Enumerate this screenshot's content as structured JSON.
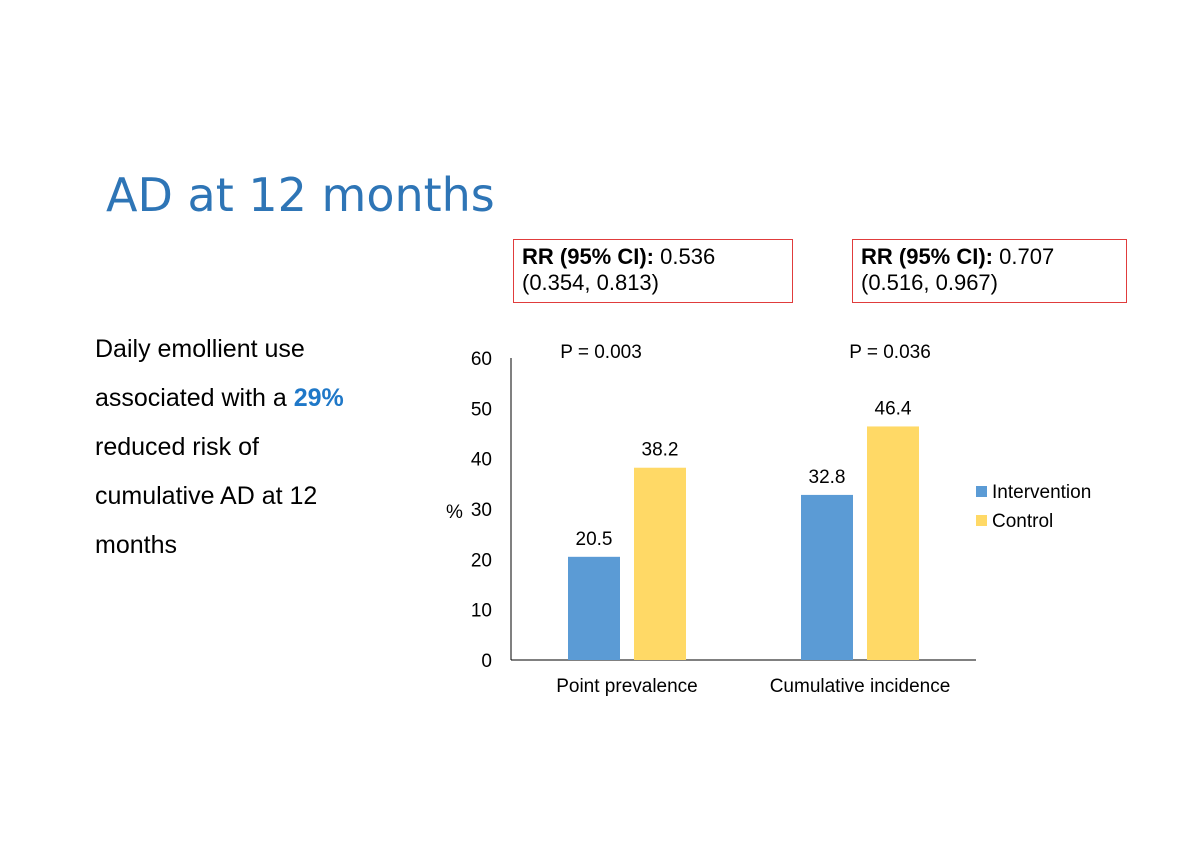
{
  "slide": {
    "title": "AD at 12 months",
    "body": {
      "line1": "Daily emollient use",
      "line2_pre": "associated with a",
      "line2_highlight": "29%",
      "line3": "reduced risk of",
      "line4": "cumulative  AD at 12",
      "line5": "months"
    },
    "rr_boxes": [
      {
        "label": "RR (95% CI):",
        "value": "0.536",
        "ci": "(0.354, 0.813)"
      },
      {
        "label": "RR (95% CI):",
        "value": "0.707",
        "ci": "(0.516, 0.967)"
      }
    ]
  },
  "chart_data": {
    "type": "bar",
    "categories": [
      "Point prevalence",
      "Cumulative incidence"
    ],
    "series": [
      {
        "name": "Intervention",
        "values": [
          20.5,
          32.8
        ],
        "color": "#5B9BD5"
      },
      {
        "name": "Control",
        "values": [
          38.2,
          46.4
        ],
        "color": "#FFD966"
      }
    ],
    "data_labels": [
      [
        "20.5",
        "32.8"
      ],
      [
        "38.2",
        "46.4"
      ]
    ],
    "annotations": [
      "P = 0.003",
      "P = 0.036"
    ],
    "ylabel": "%",
    "ylim": [
      0,
      60
    ],
    "yticks": [
      0,
      10,
      20,
      30,
      40,
      50,
      60
    ],
    "grid": false,
    "legend": "right"
  }
}
